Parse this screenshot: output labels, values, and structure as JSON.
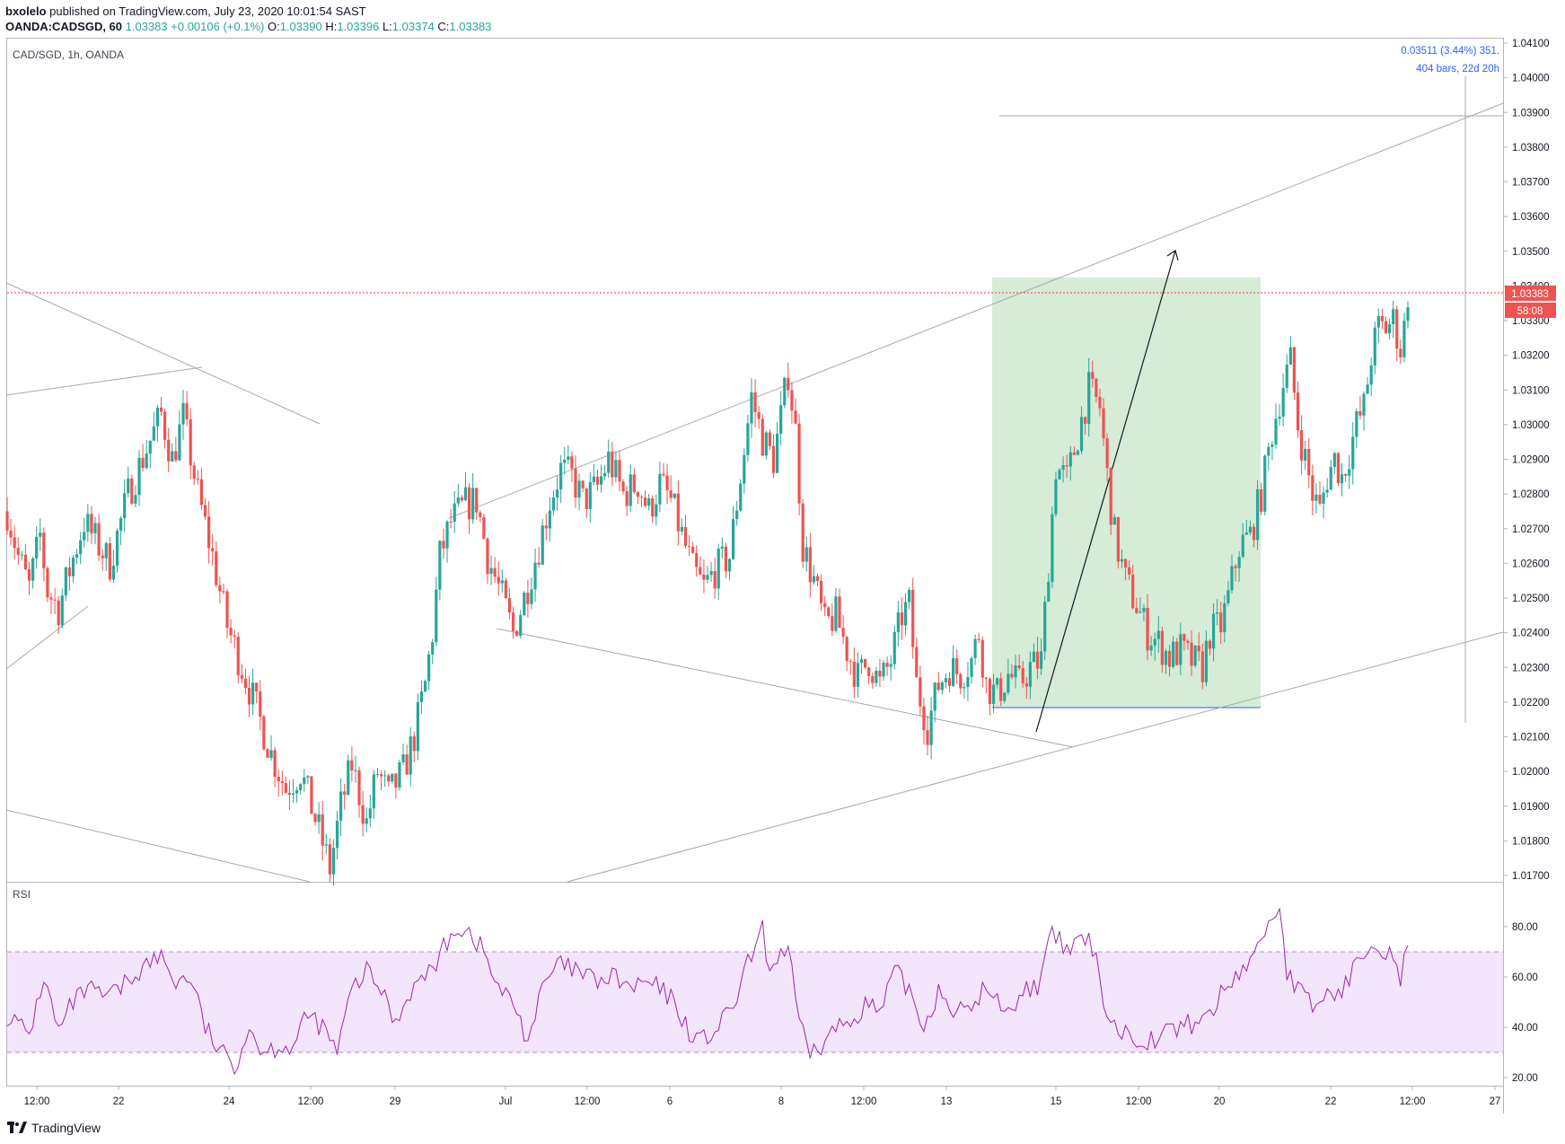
{
  "header": {
    "publisher": "bxolelo",
    "published_text": " published on TradingView.com, July 23, 2020 10:01:54 SAST",
    "symbol": "OANDA:CADSGD, 60",
    "last": "1.03383",
    "change": "+0.00106 (+0.1%)",
    "o_label": "O:",
    "o_value": "1.03390",
    "h_label": "H:",
    "h_value": "1.03396",
    "l_label": "L:",
    "l_value": "1.03374",
    "c_label": "C:",
    "c_value": "1.03383"
  },
  "chart": {
    "pane_title": "CAD/SGD, 1h, OANDA",
    "rsi_title": "RSI",
    "price_label": "1.03383",
    "countdown": "58:08",
    "measure_line1": "0.03511 (3.44%) 351.",
    "measure_line2": "404 bars, 22d 20h"
  },
  "footer": {
    "brand": "TradingView"
  },
  "colors": {
    "up": "#26a69a",
    "down": "#ef5350",
    "rsi_line": "#9c27b0",
    "rsi_band": "#f3e5fb",
    "box_fill": "#c8e6c9",
    "price_line": "#f23645",
    "measure_text": "#2962ff",
    "trend_line": "#aaaaaa"
  },
  "chart_data": {
    "type": "candlestick",
    "timeframe": "1h",
    "symbol": "CAD/SGD",
    "x_tick_labels": [
      "12:00",
      "22",
      "24",
      "12:00",
      "29",
      "Jul",
      "12:00",
      "6",
      "8",
      "12:00",
      "13",
      "15",
      "12:00",
      "20",
      "22",
      "12:00",
      "27"
    ],
    "y_tick_labels": [
      "1.04100",
      "1.04000",
      "1.03900",
      "1.03800",
      "1.03700",
      "1.03600",
      "1.03500",
      "1.03400",
      "1.03300",
      "1.03200",
      "1.03100",
      "1.03000",
      "1.02900",
      "1.02800",
      "1.02700",
      "1.02600",
      "1.02500",
      "1.02400",
      "1.02300",
      "1.02200",
      "1.02100",
      "1.02000",
      "1.01900",
      "1.01800",
      "1.01700"
    ],
    "y_range": [
      1.017,
      1.041
    ],
    "close_path": [
      [
        0,
        1.0275
      ],
      [
        3,
        1.0262
      ],
      [
        6,
        1.0253
      ],
      [
        9,
        1.0268
      ],
      [
        11,
        1.0252
      ],
      [
        14,
        1.0247
      ],
      [
        17,
        1.0258
      ],
      [
        21,
        1.0272
      ],
      [
        25,
        1.0265
      ],
      [
        28,
        1.026
      ],
      [
        33,
        1.028
      ],
      [
        38,
        1.0293
      ],
      [
        42,
        1.0303
      ],
      [
        45,
        1.029
      ],
      [
        48,
        1.0302
      ],
      [
        52,
        1.028
      ],
      [
        56,
        1.0262
      ],
      [
        60,
        1.0242
      ],
      [
        64,
        1.023
      ],
      [
        68,
        1.0218
      ],
      [
        72,
        1.0205
      ],
      [
        76,
        1.0195
      ],
      [
        80,
        1.02
      ],
      [
        85,
        1.0183
      ],
      [
        88,
        1.0172
      ],
      [
        91,
        1.019
      ],
      [
        94,
        1.0202
      ],
      [
        98,
        1.0185
      ],
      [
        101,
        1.02
      ],
      [
        104,
        1.0193
      ],
      [
        108,
        1.02
      ],
      [
        111,
        1.021
      ],
      [
        114,
        1.0225
      ],
      [
        116,
        1.024
      ],
      [
        118,
        1.0262
      ],
      [
        121,
        1.0272
      ],
      [
        125,
        1.0277
      ],
      [
        128,
        1.0278
      ],
      [
        131,
        1.0262
      ],
      [
        135,
        1.025
      ],
      [
        138,
        1.024
      ],
      [
        141,
        1.025
      ],
      [
        145,
        1.0265
      ],
      [
        148,
        1.0278
      ],
      [
        151,
        1.0287
      ],
      [
        154,
        1.0285
      ],
      [
        157,
        1.0278
      ],
      [
        161,
        1.0282
      ],
      [
        164,
        1.029
      ],
      [
        168,
        1.028
      ],
      [
        172,
        1.0283
      ],
      [
        175,
        1.0275
      ],
      [
        178,
        1.0283
      ],
      [
        181,
        1.0278
      ],
      [
        184,
        1.0268
      ],
      [
        187,
        1.0258
      ],
      [
        190,
        1.0253
      ],
      [
        193,
        1.0258
      ],
      [
        197,
        1.0262
      ],
      [
        200,
        1.0285
      ],
      [
        203,
        1.0308
      ],
      [
        206,
        1.0296
      ],
      [
        209,
        1.029
      ],
      [
        211,
        1.0302
      ],
      [
        213,
        1.0315
      ],
      [
        215,
        1.0298
      ],
      [
        217,
        1.0265
      ],
      [
        220,
        1.0255
      ],
      [
        223,
        1.0242
      ],
      [
        226,
        1.0245
      ],
      [
        229,
        1.0235
      ],
      [
        232,
        1.0227
      ],
      [
        235,
        1.0232
      ],
      [
        238,
        1.0225
      ],
      [
        241,
        1.0232
      ],
      [
        244,
        1.0245
      ],
      [
        246,
        1.0248
      ],
      [
        248,
        1.0225
      ],
      [
        251,
        1.0213
      ],
      [
        254,
        1.0225
      ],
      [
        257,
        1.023
      ],
      [
        260,
        1.0228
      ],
      [
        263,
        1.0232
      ],
      [
        265,
        1.024
      ],
      [
        267,
        1.0225
      ],
      [
        270,
        1.0222
      ],
      [
        273,
        1.0228
      ],
      [
        276,
        1.0225
      ],
      [
        279,
        1.023
      ],
      [
        282,
        1.0232
      ],
      [
        284,
        1.026
      ],
      [
        286,
        1.0288
      ],
      [
        289,
        1.0284
      ],
      [
        292,
        1.0297
      ],
      [
        295,
        1.031
      ],
      [
        298,
        1.0305
      ],
      [
        300,
        1.0285
      ],
      [
        302,
        1.0268
      ],
      [
        305,
        1.0255
      ],
      [
        308,
        1.0248
      ],
      [
        311,
        1.024
      ],
      [
        314,
        1.0237
      ],
      [
        317,
        1.0233
      ],
      [
        320,
        1.0235
      ],
      [
        323,
        1.0232
      ],
      [
        326,
        1.023
      ],
      [
        328,
        1.024
      ],
      [
        331,
        1.0242
      ],
      [
        333,
        1.025
      ],
      [
        336,
        1.0265
      ],
      [
        339,
        1.0268
      ],
      [
        342,
        1.028
      ],
      [
        345,
        1.0298
      ],
      [
        348,
        1.0312
      ],
      [
        350,
        1.0318
      ],
      [
        352,
        1.03
      ],
      [
        354,
        1.029
      ],
      [
        356,
        1.028
      ],
      [
        358,
        1.0275
      ],
      [
        360,
        1.0285
      ],
      [
        362,
        1.029
      ],
      [
        364,
        1.0285
      ],
      [
        366,
        1.0292
      ],
      [
        368,
        1.03
      ],
      [
        370,
        1.0305
      ],
      [
        372,
        1.032
      ],
      [
        374,
        1.0328
      ],
      [
        376,
        1.0328
      ],
      [
        378,
        1.033
      ],
      [
        380,
        1.0322
      ],
      [
        381,
        1.0328
      ],
      [
        382,
        1.0338
      ]
    ],
    "rsi": {
      "overbought": 70,
      "oversold": 30,
      "range": [
        15,
        95
      ],
      "y_tick_labels": [
        "80.00",
        "60.00",
        "40.00",
        "20.00"
      ],
      "path": [
        [
          0,
          45
        ],
        [
          6,
          37
        ],
        [
          10,
          60
        ],
        [
          14,
          38
        ],
        [
          18,
          50
        ],
        [
          22,
          55
        ],
        [
          26,
          52
        ],
        [
          30,
          54
        ],
        [
          34,
          60
        ],
        [
          38,
          65
        ],
        [
          42,
          68
        ],
        [
          46,
          58
        ],
        [
          50,
          60
        ],
        [
          54,
          40
        ],
        [
          58,
          30
        ],
        [
          62,
          25
        ],
        [
          66,
          40
        ],
        [
          70,
          30
        ],
        [
          74,
          33
        ],
        [
          78,
          32
        ],
        [
          82,
          45
        ],
        [
          86,
          40
        ],
        [
          90,
          30
        ],
        [
          94,
          55
        ],
        [
          98,
          62
        ],
        [
          102,
          55
        ],
        [
          106,
          42
        ],
        [
          110,
          55
        ],
        [
          114,
          60
        ],
        [
          118,
          68
        ],
        [
          122,
          80
        ],
        [
          126,
          78
        ],
        [
          130,
          70
        ],
        [
          134,
          55
        ],
        [
          138,
          50
        ],
        [
          142,
          35
        ],
        [
          146,
          55
        ],
        [
          150,
          65
        ],
        [
          154,
          63
        ],
        [
          158,
          60
        ],
        [
          162,
          58
        ],
        [
          166,
          60
        ],
        [
          170,
          55
        ],
        [
          174,
          58
        ],
        [
          178,
          55
        ],
        [
          182,
          50
        ],
        [
          186,
          38
        ],
        [
          190,
          35
        ],
        [
          194,
          40
        ],
        [
          198,
          48
        ],
        [
          202,
          65
        ],
        [
          206,
          78
        ],
        [
          208,
          62
        ],
        [
          210,
          68
        ],
        [
          213,
          72
        ],
        [
          215,
          50
        ],
        [
          218,
          30
        ],
        [
          222,
          32
        ],
        [
          226,
          40
        ],
        [
          230,
          42
        ],
        [
          234,
          50
        ],
        [
          238,
          45
        ],
        [
          242,
          62
        ],
        [
          246,
          55
        ],
        [
          250,
          40
        ],
        [
          254,
          55
        ],
        [
          258,
          48
        ],
        [
          262,
          45
        ],
        [
          266,
          55
        ],
        [
          270,
          50
        ],
        [
          274,
          48
        ],
        [
          278,
          55
        ],
        [
          282,
          58
        ],
        [
          285,
          78
        ],
        [
          289,
          70
        ],
        [
          293,
          75
        ],
        [
          296,
          72
        ],
        [
          298,
          60
        ],
        [
          300,
          45
        ],
        [
          304,
          38
        ],
        [
          308,
          36
        ],
        [
          312,
          35
        ],
        [
          316,
          38
        ],
        [
          320,
          40
        ],
        [
          324,
          42
        ],
        [
          328,
          45
        ],
        [
          332,
          55
        ],
        [
          336,
          62
        ],
        [
          340,
          68
        ],
        [
          344,
          82
        ],
        [
          347,
          88
        ],
        [
          349,
          62
        ],
        [
          352,
          55
        ],
        [
          356,
          48
        ],
        [
          359,
          52
        ],
        [
          363,
          54
        ],
        [
          366,
          58
        ],
        [
          369,
          70
        ],
        [
          372,
          75
        ],
        [
          375,
          72
        ],
        [
          378,
          68
        ],
        [
          380,
          60
        ],
        [
          382,
          71
        ]
      ]
    }
  }
}
